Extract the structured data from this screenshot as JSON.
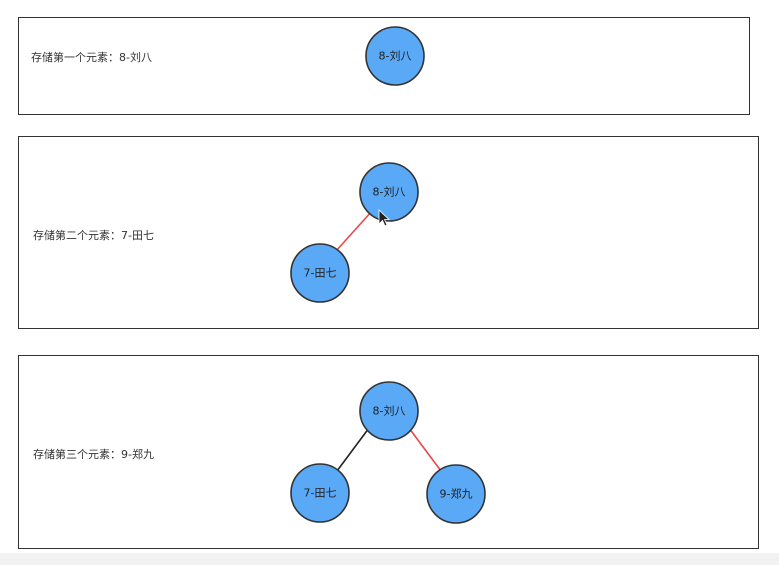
{
  "panels": [
    {
      "label": "存储第一个元素：8-刘八",
      "nodes": [
        {
          "id": "n8",
          "label": "8-刘八"
        }
      ],
      "edges": []
    },
    {
      "label": "存储第二个元素：7-田七",
      "nodes": [
        {
          "id": "n8",
          "label": "8-刘八"
        },
        {
          "id": "n7",
          "label": "7-田七"
        }
      ],
      "edges": [
        {
          "from": "n8",
          "to": "n7",
          "color": "#e8474b"
        }
      ]
    },
    {
      "label": "存储第三个元素：9-郑九",
      "nodes": [
        {
          "id": "n8",
          "label": "8-刘八"
        },
        {
          "id": "n7",
          "label": "7-田七"
        },
        {
          "id": "n9",
          "label": "9-郑九"
        }
      ],
      "edges": [
        {
          "from": "n8",
          "to": "n7",
          "color": "#222222"
        },
        {
          "from": "n8",
          "to": "n9",
          "color": "#e8474b"
        }
      ]
    }
  ],
  "colors": {
    "node_fill": "#5aa9f7",
    "node_stroke": "#333333",
    "new_edge": "#e8474b",
    "old_edge": "#222222"
  }
}
